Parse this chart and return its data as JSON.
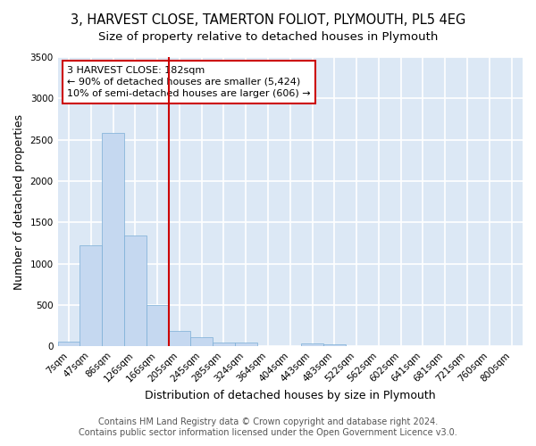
{
  "title": "3, HARVEST CLOSE, TAMERTON FOLIOT, PLYMOUTH, PL5 4EG",
  "subtitle": "Size of property relative to detached houses in Plymouth",
  "xlabel": "Distribution of detached houses by size in Plymouth",
  "ylabel": "Number of detached properties",
  "footer_line1": "Contains HM Land Registry data © Crown copyright and database right 2024.",
  "footer_line2": "Contains public sector information licensed under the Open Government Licence v3.0.",
  "bar_labels": [
    "7sqm",
    "47sqm",
    "86sqm",
    "126sqm",
    "166sqm",
    "205sqm",
    "245sqm",
    "285sqm",
    "324sqm",
    "364sqm",
    "404sqm",
    "443sqm",
    "483sqm",
    "522sqm",
    "562sqm",
    "602sqm",
    "641sqm",
    "681sqm",
    "721sqm",
    "760sqm",
    "800sqm"
  ],
  "bar_values": [
    55,
    1225,
    2580,
    1340,
    500,
    190,
    110,
    50,
    50,
    5,
    5,
    40,
    30,
    3,
    3,
    0,
    0,
    0,
    0,
    0,
    0
  ],
  "bar_color": "#c5d8f0",
  "bar_edge_color": "#7aaed6",
  "vline_color": "#cc0000",
  "annotation_text": "3 HARVEST CLOSE: 182sqm\n← 90% of detached houses are smaller (5,424)\n10% of semi-detached houses are larger (606) →",
  "annotation_box_color": "#cc0000",
  "ylim": [
    0,
    3500
  ],
  "yticks": [
    0,
    500,
    1000,
    1500,
    2000,
    2500,
    3000,
    3500
  ],
  "background_color": "#dce8f5",
  "grid_color": "#ffffff",
  "title_fontsize": 10.5,
  "subtitle_fontsize": 9.5,
  "axis_label_fontsize": 9,
  "tick_fontsize": 7.5,
  "footer_fontsize": 7
}
